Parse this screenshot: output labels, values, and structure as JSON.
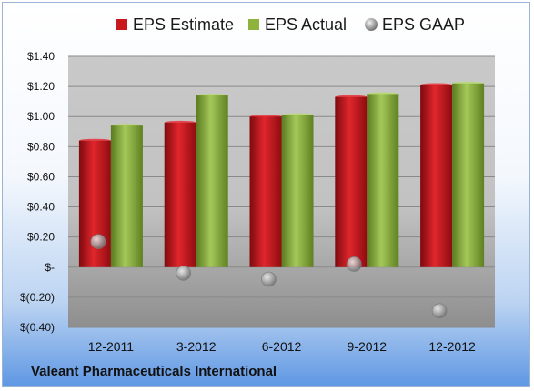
{
  "colors": {
    "estimate": "#c8181e",
    "actual": "#8db33c",
    "gaap": "#a9a9a9"
  },
  "company_name": "Valeant Pharmaceuticals International",
  "chart_data": {
    "type": "bar",
    "categories": [
      "12-2011",
      "3-2012",
      "6-2012",
      "9-2012",
      "12-2012"
    ],
    "series": [
      {
        "name": "EPS Estimate",
        "kind": "bar",
        "values": [
          0.84,
          0.96,
          1.0,
          1.13,
          1.21
        ]
      },
      {
        "name": "EPS Actual",
        "kind": "bar",
        "values": [
          0.94,
          1.14,
          1.01,
          1.15,
          1.22
        ]
      },
      {
        "name": "EPS GAAP",
        "kind": "marker",
        "values": [
          0.17,
          -0.04,
          -0.08,
          0.02,
          -0.29
        ]
      }
    ],
    "ylim": [
      -0.4,
      1.4
    ],
    "yticks": [
      -0.4,
      -0.2,
      0,
      0.2,
      0.4,
      0.6,
      0.8,
      1.0,
      1.2,
      1.4
    ],
    "ytick_labels": [
      "$(0.40)",
      "$(0.20)",
      "$-",
      "$0.20",
      "$0.40",
      "$0.60",
      "$0.80",
      "$1.00",
      "$1.20",
      "$1.40"
    ],
    "grid": true,
    "legend_position": "top"
  }
}
